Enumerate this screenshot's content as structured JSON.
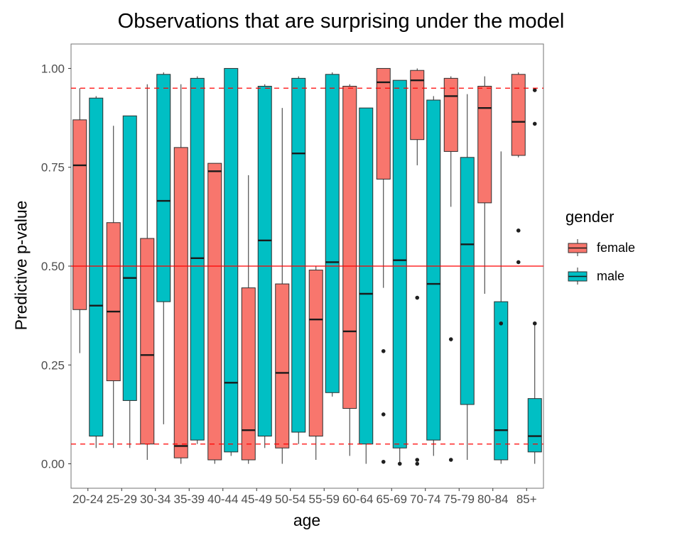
{
  "chart_data": {
    "type": "boxplot",
    "title": "Observations that are surprising under the model",
    "xlabel": "age",
    "ylabel": "Predictive p-value",
    "ylim": [
      0,
      1
    ],
    "y_ticks": [
      0,
      0.25,
      0.5,
      0.75,
      1
    ],
    "y_tick_labels": [
      "0.00",
      "0.25",
      "0.50",
      "0.75",
      "1.00"
    ],
    "categories": [
      "20-24",
      "25-29",
      "30-34",
      "35-39",
      "40-44",
      "45-49",
      "50-54",
      "55-59",
      "60-64",
      "65-69",
      "70-74",
      "75-79",
      "80-84",
      "85+"
    ],
    "reference_lines": [
      {
        "y": 0.5,
        "style": "solid",
        "color": "#FF0000"
      },
      {
        "y": 0.95,
        "style": "dashed",
        "color": "#FF0000"
      },
      {
        "y": 0.05,
        "style": "dashed",
        "color": "#FF0000"
      }
    ],
    "legend": {
      "title": "gender",
      "entries": [
        {
          "label": "female",
          "color": "#F8766D"
        },
        {
          "label": "male",
          "color": "#00BFC4"
        }
      ]
    },
    "series": [
      {
        "name": "female",
        "color": "#F8766D",
        "boxes": [
          {
            "low": 0.28,
            "q1": 0.39,
            "median": 0.755,
            "q3": 0.87,
            "high": 0.95,
            "outliers": []
          },
          {
            "low": 0.04,
            "q1": 0.21,
            "median": 0.385,
            "q3": 0.61,
            "high": 0.855,
            "outliers": []
          },
          {
            "low": 0.01,
            "q1": 0.05,
            "median": 0.275,
            "q3": 0.57,
            "high": 0.96,
            "outliers": []
          },
          {
            "low": 0.0,
            "q1": 0.015,
            "median": 0.045,
            "q3": 0.8,
            "high": 0.96,
            "outliers": []
          },
          {
            "low": 0.0,
            "q1": 0.01,
            "median": 0.74,
            "q3": 0.76,
            "high": 0.76,
            "outliers": []
          },
          {
            "low": 0.0,
            "q1": 0.01,
            "median": 0.085,
            "q3": 0.445,
            "high": 0.73,
            "outliers": []
          },
          {
            "low": 0.0,
            "q1": 0.04,
            "median": 0.23,
            "q3": 0.455,
            "high": 0.9,
            "outliers": []
          },
          {
            "low": 0.01,
            "q1": 0.07,
            "median": 0.365,
            "q3": 0.49,
            "high": 0.5,
            "outliers": []
          },
          {
            "low": 0.02,
            "q1": 0.14,
            "median": 0.335,
            "q3": 0.955,
            "high": 0.96,
            "outliers": []
          },
          {
            "low": 0.445,
            "q1": 0.72,
            "median": 0.965,
            "q3": 1.0,
            "high": 1.0,
            "outliers": [
              0.285,
              0.125,
              0.005
            ]
          },
          {
            "low": 0.755,
            "q1": 0.82,
            "median": 0.97,
            "q3": 0.995,
            "high": 1.0,
            "outliers": [
              0.42,
              0.01,
              0.0
            ]
          },
          {
            "low": 0.65,
            "q1": 0.79,
            "median": 0.93,
            "q3": 0.975,
            "high": 0.98,
            "outliers": [
              0.315,
              0.01
            ]
          },
          {
            "low": 0.43,
            "q1": 0.66,
            "median": 0.9,
            "q3": 0.955,
            "high": 0.98,
            "outliers": []
          },
          {
            "low": 0.775,
            "q1": 0.78,
            "median": 0.865,
            "q3": 0.985,
            "high": 0.99,
            "outliers": [
              0.59,
              0.51
            ]
          }
        ]
      },
      {
        "name": "male",
        "color": "#00BFC4",
        "boxes": [
          {
            "low": 0.04,
            "q1": 0.07,
            "median": 0.4,
            "q3": 0.925,
            "high": 0.93,
            "outliers": []
          },
          {
            "low": 0.04,
            "q1": 0.16,
            "median": 0.47,
            "q3": 0.88,
            "high": 0.88,
            "outliers": []
          },
          {
            "low": 0.1,
            "q1": 0.41,
            "median": 0.665,
            "q3": 0.985,
            "high": 0.99,
            "outliers": []
          },
          {
            "low": 0.05,
            "q1": 0.06,
            "median": 0.52,
            "q3": 0.975,
            "high": 0.98,
            "outliers": []
          },
          {
            "low": 0.02,
            "q1": 0.03,
            "median": 0.205,
            "q3": 1.0,
            "high": 1.0,
            "outliers": []
          },
          {
            "low": 0.04,
            "q1": 0.07,
            "median": 0.565,
            "q3": 0.955,
            "high": 0.96,
            "outliers": []
          },
          {
            "low": 0.05,
            "q1": 0.08,
            "median": 0.785,
            "q3": 0.975,
            "high": 0.98,
            "outliers": []
          },
          {
            "low": 0.17,
            "q1": 0.18,
            "median": 0.51,
            "q3": 0.985,
            "high": 0.99,
            "outliers": []
          },
          {
            "low": 0.0,
            "q1": 0.05,
            "median": 0.43,
            "q3": 0.9,
            "high": 0.9,
            "outliers": []
          },
          {
            "low": 0.0,
            "q1": 0.04,
            "median": 0.515,
            "q3": 0.97,
            "high": 0.97,
            "outliers": [
              0.0
            ]
          },
          {
            "low": 0.02,
            "q1": 0.06,
            "median": 0.455,
            "q3": 0.92,
            "high": 0.93,
            "outliers": []
          },
          {
            "low": 0.01,
            "q1": 0.15,
            "median": 0.555,
            "q3": 0.775,
            "high": 0.935,
            "outliers": []
          },
          {
            "low": 0.0,
            "q1": 0.01,
            "median": 0.085,
            "q3": 0.41,
            "high": 0.79,
            "outliers": [
              0.355
            ]
          },
          {
            "low": 0.0,
            "q1": 0.03,
            "median": 0.07,
            "q3": 0.165,
            "high": 0.36,
            "outliers": [
              0.945,
              0.86,
              0.355
            ]
          }
        ]
      }
    ]
  }
}
